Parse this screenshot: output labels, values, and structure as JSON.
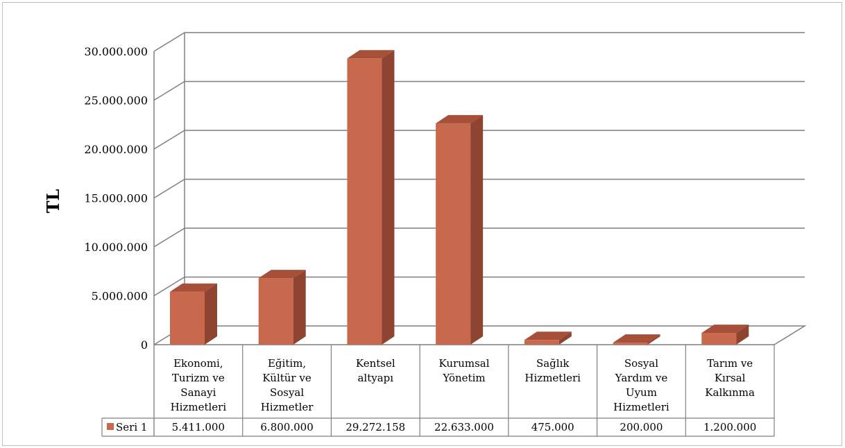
{
  "chart_data": {
    "type": "bar",
    "categories": [
      [
        "Ekonomi,",
        "Turizm ve",
        "Sanayi",
        "Hizmetleri"
      ],
      [
        "Eğitim,",
        "Kültür ve",
        "Sosyal",
        "Hizmetler"
      ],
      [
        "Kentsel",
        "altyapı"
      ],
      [
        "Kurumsal",
        "Yönetim"
      ],
      [
        "Sağlık",
        "Hizmetleri"
      ],
      [
        "Sosyal",
        "Yardım ve",
        "Uyum",
        "Hizmetleri"
      ],
      [
        "Tarım ve",
        "Kırsal",
        "Kalkınma"
      ]
    ],
    "series": [
      {
        "name": "Seri 1",
        "values": [
          5411000,
          6800000,
          29272158,
          22633000,
          475000,
          200000,
          1200000
        ],
        "value_labels": [
          "5.411.000",
          "6.800.000",
          "29.272.158",
          "22.633.000",
          "475.000",
          "200.000",
          "1.200.000"
        ],
        "color": "#c8694d"
      }
    ],
    "ylabel": "TL",
    "ylim": [
      0,
      30000000
    ],
    "yticks": [
      0,
      5000000,
      10000000,
      15000000,
      20000000,
      25000000,
      30000000
    ],
    "ytick_labels": [
      "0",
      "5.000.000",
      "10.000.000",
      "15.000.000",
      "20.000.000",
      "25.000.000",
      "30.000.000"
    ],
    "grid": true,
    "legend": "data-table",
    "style": "3d-column-with-data-table"
  }
}
